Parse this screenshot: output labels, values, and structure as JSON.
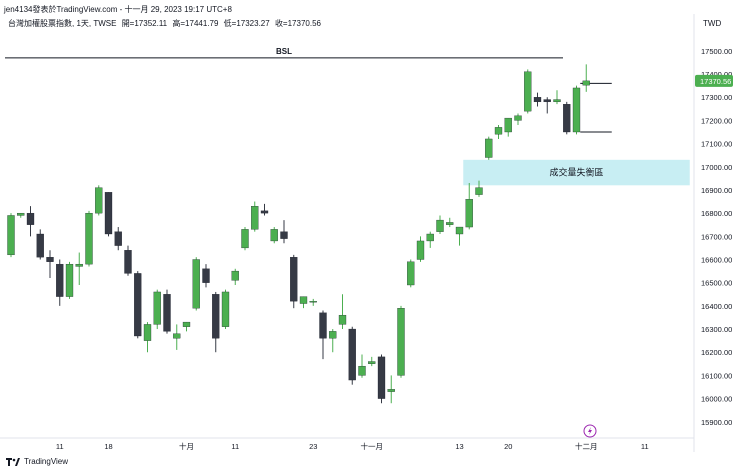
{
  "header": {
    "publisher_line": "jen4134發表於TradingView.com - 十一月 29, 2023 19:17 UTC+8",
    "symbol_line": "台灣加權股票指數, 1天, TWSE",
    "ohlc": {
      "open": "開=17352.11",
      "high": "高=17441.79",
      "low": "低=17323.27",
      "close": "收=17370.56"
    },
    "currency": "TWD"
  },
  "footer": {
    "brand": "TradingView"
  },
  "colors": {
    "up": "#4caf50",
    "down": "#363a45",
    "imbalance_zone": "#c8eef3",
    "last_price_bg": "#4caf50"
  },
  "chart_data": {
    "type": "candlestick",
    "title": "台灣加權股票指數, 1天, TWSE",
    "ylim": [
      15830,
      17590
    ],
    "y_ticks": [
      15900,
      16000,
      16100,
      16200,
      16300,
      16400,
      16500,
      16600,
      16700,
      16800,
      16900,
      17000,
      17100,
      17200,
      17300,
      17400,
      17500
    ],
    "y_tick_labels": [
      "15900.00",
      "16000.00",
      "16100.00",
      "16200.00",
      "16300.00",
      "16400.00",
      "16500.00",
      "16600.00",
      "16700.00",
      "16800.00",
      "16900.00",
      "17000.00",
      "17100.00",
      "17200.00",
      "17300.00",
      "17400.00",
      "17500.00"
    ],
    "x_axis_labels": [
      {
        "label": "11",
        "index": 5
      },
      {
        "label": "18",
        "index": 10
      },
      {
        "label": "十月",
        "index": 18
      },
      {
        "label": "11",
        "index": 23
      },
      {
        "label": "23",
        "index": 31
      },
      {
        "label": "十一月",
        "index": 37
      },
      {
        "label": "13",
        "index": 46
      },
      {
        "label": "20",
        "index": 51
      },
      {
        "label": "十二月",
        "index": 59
      },
      {
        "label": "11",
        "index": 65
      }
    ],
    "candles": [
      {
        "o": 16620,
        "h": 16800,
        "l": 16610,
        "c": 16790
      },
      {
        "o": 16790,
        "h": 16800,
        "l": 16780,
        "c": 16800
      },
      {
        "o": 16800,
        "h": 16830,
        "l": 16700,
        "c": 16750
      },
      {
        "o": 16710,
        "h": 16730,
        "l": 16600,
        "c": 16610
      },
      {
        "o": 16610,
        "h": 16640,
        "l": 16520,
        "c": 16590
      },
      {
        "o": 16580,
        "h": 16600,
        "l": 16400,
        "c": 16440
      },
      {
        "o": 16440,
        "h": 16590,
        "l": 16430,
        "c": 16580
      },
      {
        "o": 16570,
        "h": 16630,
        "l": 16490,
        "c": 16580
      },
      {
        "o": 16580,
        "h": 16810,
        "l": 16570,
        "c": 16800
      },
      {
        "o": 16800,
        "h": 16920,
        "l": 16790,
        "c": 16910
      },
      {
        "o": 16890,
        "h": 16890,
        "l": 16700,
        "c": 16710
      },
      {
        "o": 16720,
        "h": 16740,
        "l": 16640,
        "c": 16660
      },
      {
        "o": 16640,
        "h": 16660,
        "l": 16530,
        "c": 16540
      },
      {
        "o": 16540,
        "h": 16550,
        "l": 16260,
        "c": 16270
      },
      {
        "o": 16250,
        "h": 16330,
        "l": 16200,
        "c": 16320
      },
      {
        "o": 16320,
        "h": 16470,
        "l": 16300,
        "c": 16460
      },
      {
        "o": 16450,
        "h": 16470,
        "l": 16280,
        "c": 16290
      },
      {
        "o": 16260,
        "h": 16320,
        "l": 16210,
        "c": 16280
      },
      {
        "o": 16310,
        "h": 16330,
        "l": 16290,
        "c": 16330
      },
      {
        "o": 16390,
        "h": 16610,
        "l": 16380,
        "c": 16600
      },
      {
        "o": 16560,
        "h": 16580,
        "l": 16480,
        "c": 16500
      },
      {
        "o": 16450,
        "h": 16460,
        "l": 16200,
        "c": 16260
      },
      {
        "o": 16310,
        "h": 16470,
        "l": 16300,
        "c": 16460
      },
      {
        "o": 16510,
        "h": 16560,
        "l": 16490,
        "c": 16550
      },
      {
        "o": 16650,
        "h": 16740,
        "l": 16640,
        "c": 16730
      },
      {
        "o": 16730,
        "h": 16850,
        "l": 16720,
        "c": 16830
      },
      {
        "o": 16810,
        "h": 16840,
        "l": 16790,
        "c": 16800
      },
      {
        "o": 16680,
        "h": 16740,
        "l": 16670,
        "c": 16730
      },
      {
        "o": 16720,
        "h": 16770,
        "l": 16670,
        "c": 16690
      },
      {
        "o": 16610,
        "h": 16620,
        "l": 16390,
        "c": 16420
      },
      {
        "o": 16410,
        "h": 16440,
        "l": 16390,
        "c": 16440
      },
      {
        "o": 16420,
        "h": 16430,
        "l": 16400,
        "c": 16420
      },
      {
        "o": 16370,
        "h": 16380,
        "l": 16170,
        "c": 16260
      },
      {
        "o": 16260,
        "h": 16300,
        "l": 16200,
        "c": 16290
      },
      {
        "o": 16320,
        "h": 16450,
        "l": 16300,
        "c": 16360
      },
      {
        "o": 16300,
        "h": 16310,
        "l": 16060,
        "c": 16080
      },
      {
        "o": 16100,
        "h": 16190,
        "l": 16090,
        "c": 16140
      },
      {
        "o": 16150,
        "h": 16180,
        "l": 16140,
        "c": 16160
      },
      {
        "o": 16180,
        "h": 16190,
        "l": 15980,
        "c": 16000
      },
      {
        "o": 16030,
        "h": 16100,
        "l": 15980,
        "c": 16040
      },
      {
        "o": 16100,
        "h": 16400,
        "l": 16090,
        "c": 16390
      },
      {
        "o": 16490,
        "h": 16600,
        "l": 16480,
        "c": 16590
      },
      {
        "o": 16600,
        "h": 16700,
        "l": 16590,
        "c": 16680
      },
      {
        "o": 16680,
        "h": 16720,
        "l": 16650,
        "c": 16710
      },
      {
        "o": 16720,
        "h": 16790,
        "l": 16710,
        "c": 16770
      },
      {
        "o": 16750,
        "h": 16780,
        "l": 16740,
        "c": 16760
      },
      {
        "o": 16710,
        "h": 16730,
        "l": 16660,
        "c": 16740
      },
      {
        "o": 16740,
        "h": 16930,
        "l": 16730,
        "c": 16860
      },
      {
        "o": 16880,
        "h": 16940,
        "l": 16870,
        "c": 16910
      },
      {
        "o": 17040,
        "h": 17130,
        "l": 17030,
        "c": 17120
      },
      {
        "o": 17140,
        "h": 17180,
        "l": 17120,
        "c": 17170
      },
      {
        "o": 17150,
        "h": 17210,
        "l": 17130,
        "c": 17210
      },
      {
        "o": 17200,
        "h": 17230,
        "l": 17180,
        "c": 17220
      },
      {
        "o": 17240,
        "h": 17420,
        "l": 17230,
        "c": 17410
      },
      {
        "o": 17300,
        "h": 17320,
        "l": 17260,
        "c": 17280
      },
      {
        "o": 17290,
        "h": 17300,
        "l": 17230,
        "c": 17280
      },
      {
        "o": 17280,
        "h": 17330,
        "l": 17270,
        "c": 17290
      },
      {
        "o": 17270,
        "h": 17280,
        "l": 17140,
        "c": 17150
      },
      {
        "o": 17150,
        "h": 17350,
        "l": 17140,
        "c": 17340
      },
      {
        "o": 17352.11,
        "h": 17441.79,
        "l": 17323.27,
        "c": 17370.56
      }
    ],
    "annotations": [
      {
        "type": "hline",
        "label": "BSL",
        "price": 17470,
        "from_index": 0,
        "to_index": 56
      },
      {
        "type": "zone",
        "label": "成交量失衡區",
        "top": 17030,
        "bottom": 16920,
        "from_index": 47,
        "to_index": 69
      },
      {
        "type": "hline",
        "label": "",
        "price": 17360,
        "from_index": 59,
        "to_index": 61
      },
      {
        "type": "hline",
        "label": "",
        "price": 17150,
        "from_index": 59,
        "to_index": 61
      }
    ],
    "last_price_label": "17370.56",
    "grid": false,
    "legend": "none"
  }
}
